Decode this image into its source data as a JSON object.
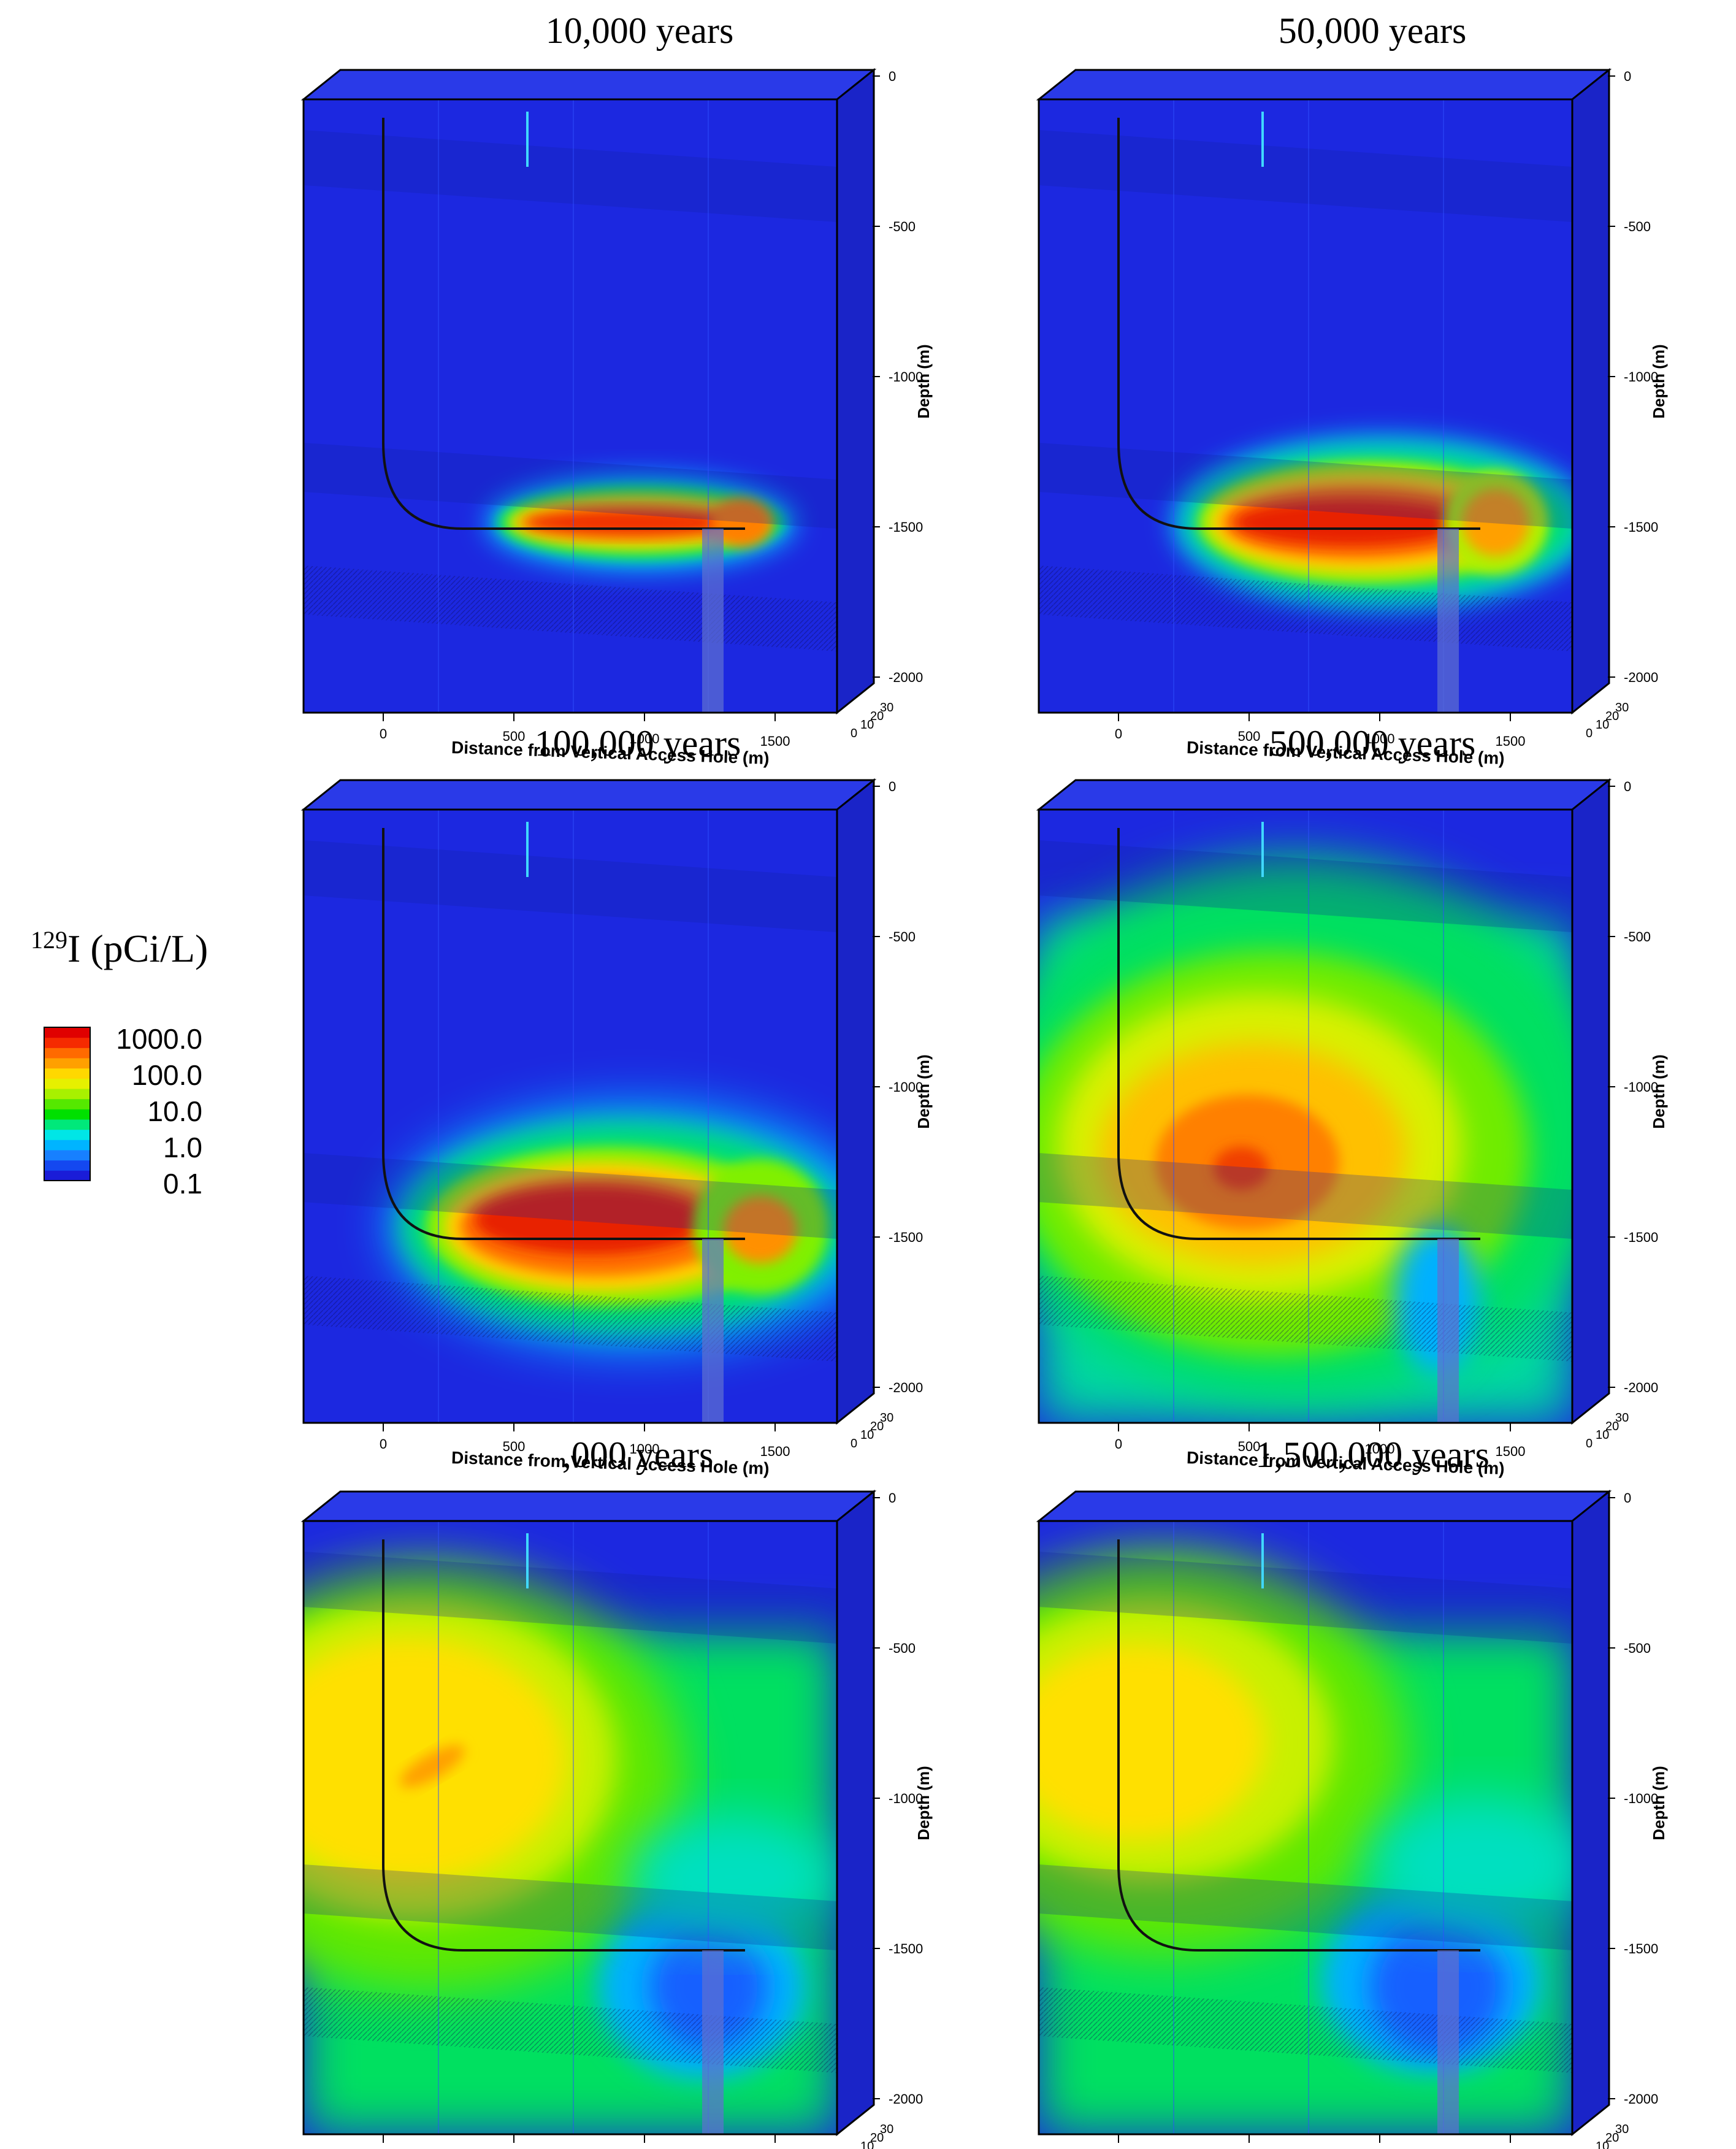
{
  "figure": {
    "legend": {
      "isotope_superscript": "129",
      "title_main": "I (pCi/L)",
      "colors": [
        "#1a1cd8",
        "#1448f0",
        "#1780ff",
        "#00b4ff",
        "#00e6e6",
        "#00e87a",
        "#00e000",
        "#55e800",
        "#a8f000",
        "#e6f000",
        "#ffd800",
        "#ffa000",
        "#ff6a00",
        "#f52a00",
        "#e00000"
      ],
      "labels": [
        "1000.0",
        "100.0",
        "10.0",
        "1.0",
        "0.1"
      ]
    },
    "panels": [
      {
        "title": "10,000 years",
        "plume": "p1"
      },
      {
        "title": "50,000 years",
        "plume": "p2"
      },
      {
        "title": "100,000 years",
        "plume": "p3"
      },
      {
        "title": "500,000 years",
        "plume": "p4"
      },
      {
        "title": ",000 years",
        "plume": "p5"
      },
      {
        "title": "1,500,000 years",
        "plume": "p6"
      }
    ],
    "axes": {
      "x_label": "Distance from Vertical Access Hole (m)",
      "x_ticks": [
        "0",
        "500",
        "1000",
        "1500"
      ],
      "depth_label": "Depth (m)",
      "depth_ticks": [
        "0",
        "-500",
        "-1000",
        "-1500",
        "-2000"
      ],
      "y_ticks": [
        "0",
        "10",
        "20",
        "30"
      ]
    }
  }
}
